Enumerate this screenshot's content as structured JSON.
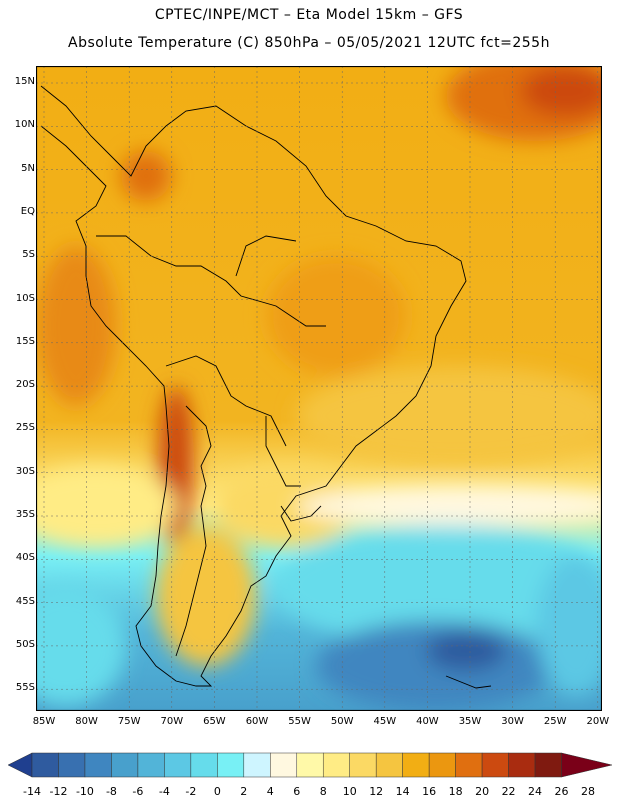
{
  "title_line1": "CPTEC/INPE/MCT –  Eta Model 15km – GFS",
  "title_line2": "Absolute Temperature (C) 850hPa – 05/05/2021 12UTC fct=255h",
  "lat_ticks": [
    "15N",
    "10N",
    "5N",
    "EQ",
    "5S",
    "10S",
    "15S",
    "20S",
    "25S",
    "30S",
    "35S",
    "40S",
    "45S",
    "50S",
    "55S"
  ],
  "lon_ticks": [
    "85W",
    "80W",
    "75W",
    "70W",
    "65W",
    "60W",
    "55W",
    "50W",
    "45W",
    "40W",
    "35W",
    "30W",
    "25W",
    "20W"
  ],
  "colorbar": {
    "labels": [
      "-14",
      "-12",
      "-10",
      "-8",
      "-6",
      "-4",
      "-2",
      "0",
      "2",
      "4",
      "6",
      "8",
      "10",
      "12",
      "14",
      "16",
      "18",
      "20",
      "22",
      "24",
      "26",
      "28"
    ],
    "colors": [
      "#1f3f8f",
      "#2f5b9f",
      "#3870b0",
      "#3f86c0",
      "#48a0cc",
      "#52b4d8",
      "#5cc8e4",
      "#66dceb",
      "#78f0f5",
      "#cef5ff",
      "#fff8e0",
      "#fff9a8",
      "#ffec85",
      "#fbd964",
      "#f5c540",
      "#f2ae14",
      "#eb9710",
      "#e06f10",
      "#cc4a10",
      "#a92c10",
      "#7f1a10",
      "#7a0018"
    ],
    "unit": "C"
  }
}
